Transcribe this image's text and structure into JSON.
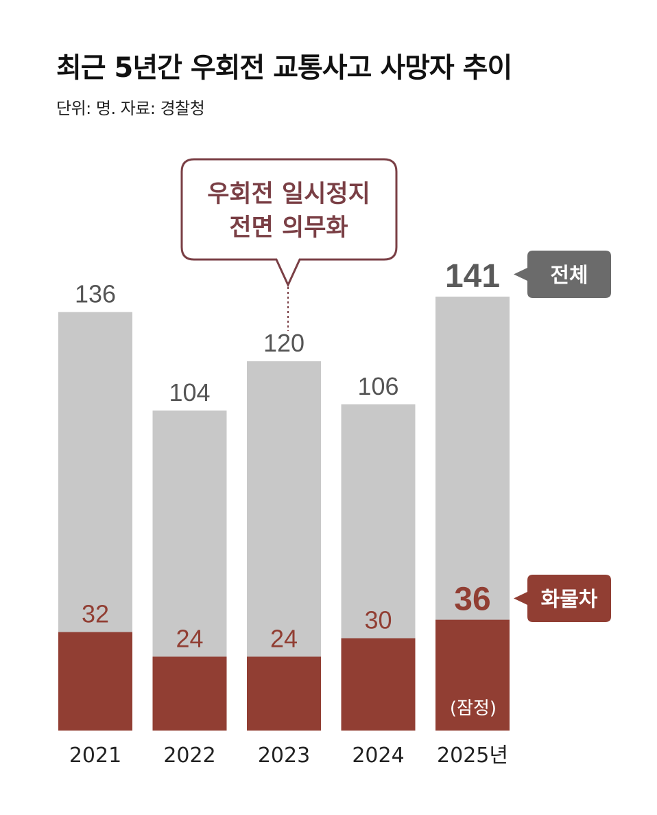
{
  "title": "최근 5년간 우회전 교통사고 사망자 추이",
  "subtitle": "단위: 명. 자료: 경찰청",
  "callout": {
    "lines": [
      "우회전 일시정지",
      "전면 의무화"
    ],
    "color": "#7a3f45"
  },
  "legend": {
    "total": "전체",
    "truck": "화물차"
  },
  "note": "(잠정)",
  "colors": {
    "total_bar": "#c8c8c8",
    "truck_bar": "#913e33",
    "total_text": "#555555",
    "truck_text": "#913e33",
    "total_tag": "#6b6b6b",
    "truck_tag": "#913e33"
  },
  "chart_data": {
    "type": "bar",
    "categories": [
      "2021",
      "2022",
      "2023",
      "2024",
      "2025년"
    ],
    "series": [
      {
        "name": "전체",
        "values": [
          136,
          104,
          120,
          106,
          141
        ]
      },
      {
        "name": "화물차",
        "values": [
          32,
          24,
          24,
          30,
          36
        ]
      }
    ],
    "ylim": [
      0,
      141
    ]
  }
}
